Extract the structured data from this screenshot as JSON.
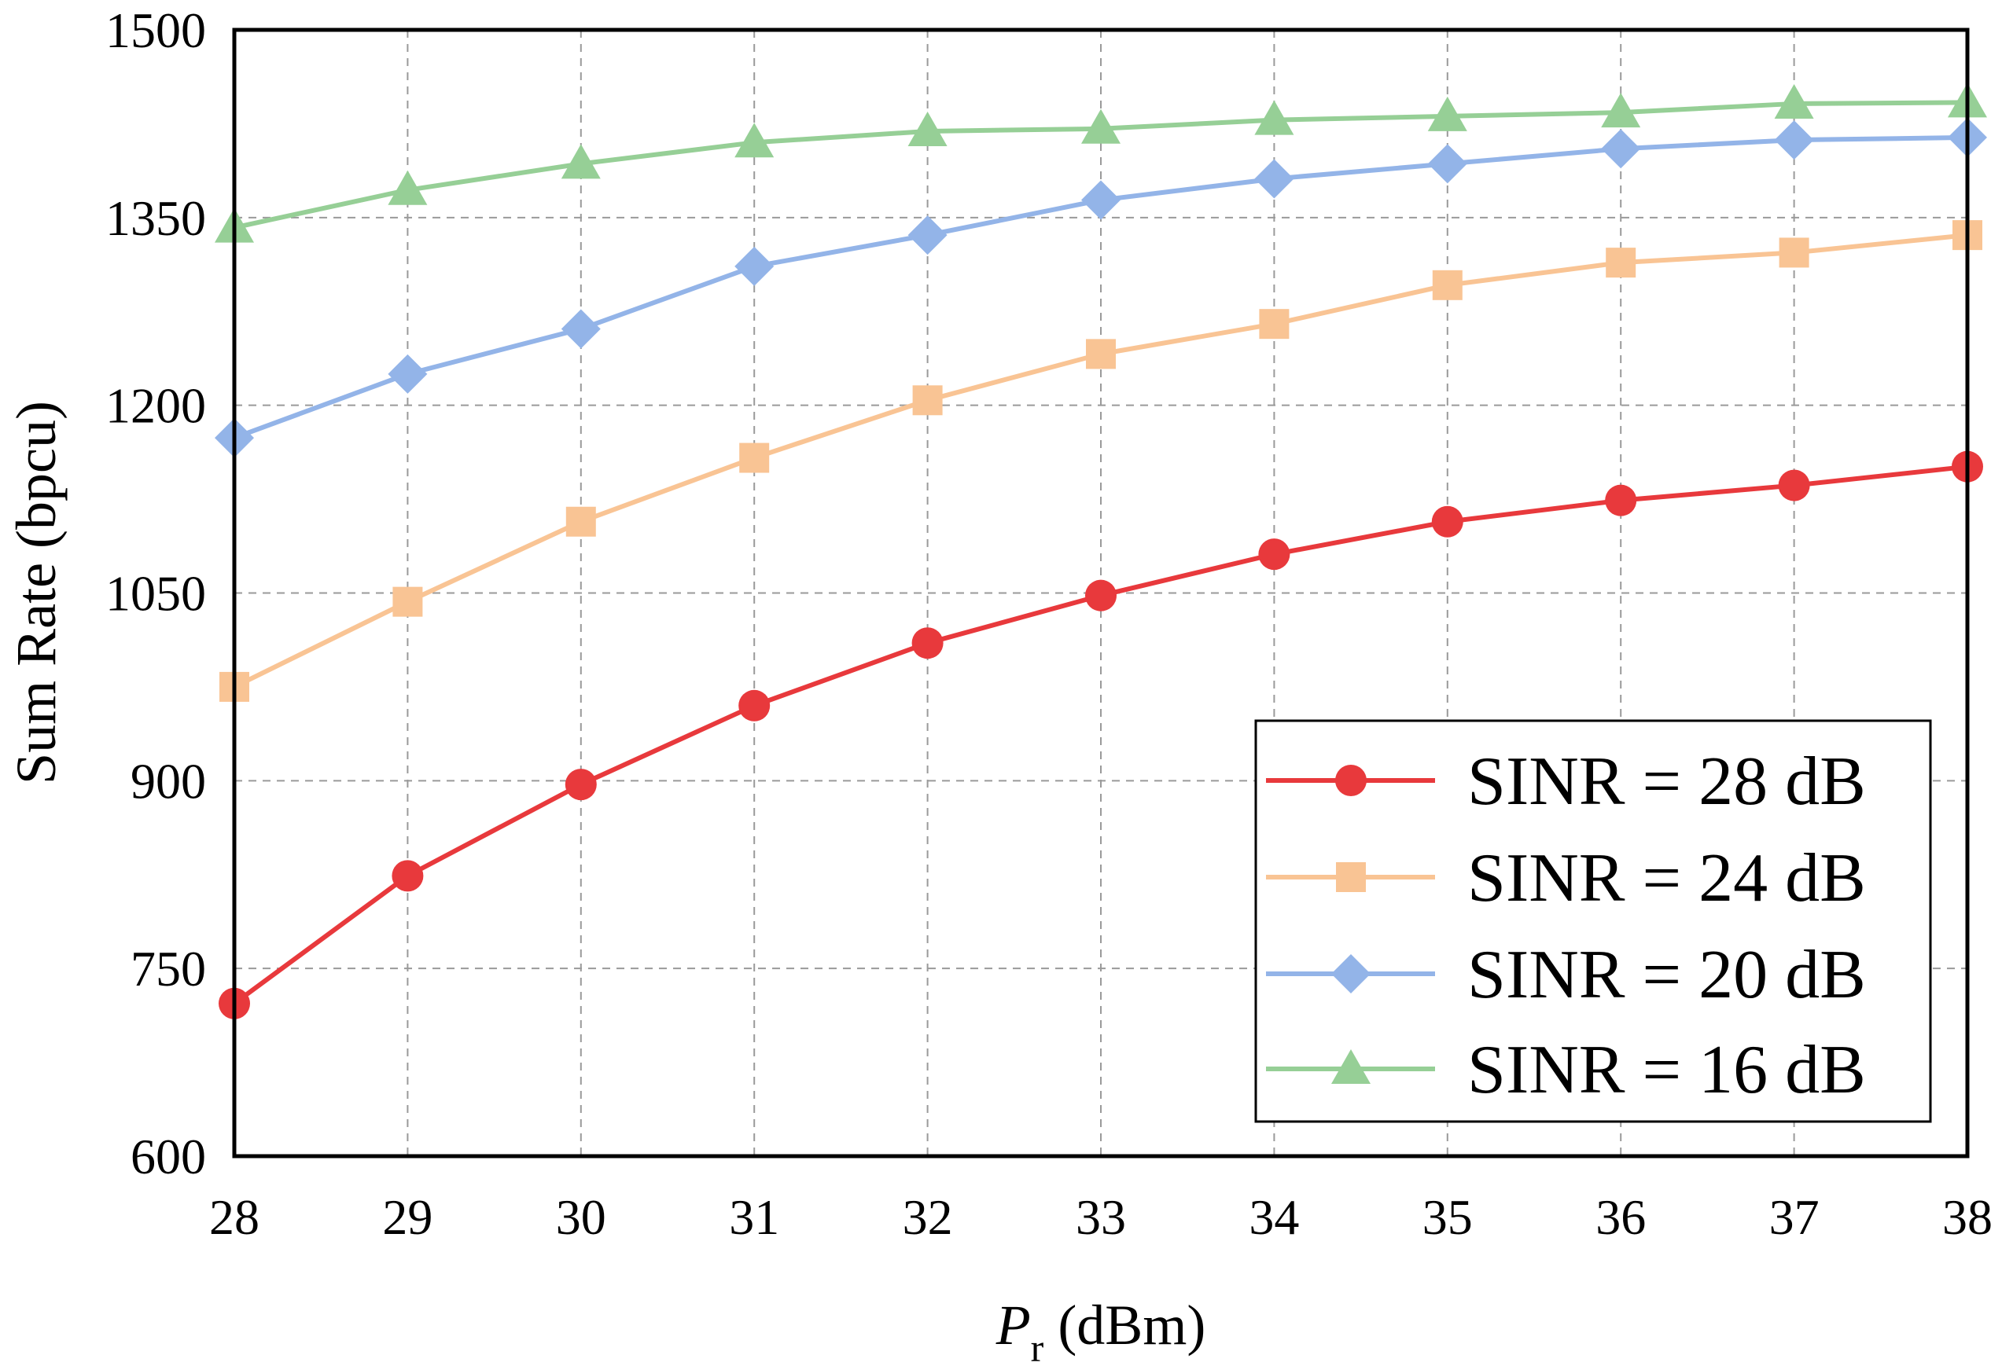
{
  "chart_data": {
    "type": "line",
    "title": "",
    "xlabel": {
      "symbol": "P",
      "subscript": "r",
      "unit": " (dBm)"
    },
    "ylabel": "Sum Rate (bpcu)",
    "x": [
      28,
      29,
      30,
      31,
      32,
      33,
      34,
      35,
      36,
      37,
      38
    ],
    "xlim": [
      28,
      38
    ],
    "ylim": [
      600,
      1500
    ],
    "xticks": [
      "28",
      "29",
      "30",
      "31",
      "32",
      "33",
      "34",
      "35",
      "36",
      "37",
      "38"
    ],
    "yticks": [
      "600",
      "750",
      "900",
      "1050",
      "1200",
      "1350",
      "1500"
    ],
    "grid": true,
    "legend_position": "lower-right",
    "series": [
      {
        "name": "SINR = 28 dB",
        "color": "#e8393c",
        "marker": "circle",
        "values": [
          722,
          824,
          897,
          960,
          1010,
          1048,
          1081,
          1107,
          1124,
          1136,
          1151
        ]
      },
      {
        "name": "SINR = 24 dB",
        "color": "#f9c494",
        "marker": "square",
        "values": [
          975,
          1043,
          1107,
          1158,
          1204,
          1241,
          1265,
          1296,
          1314,
          1322,
          1336
        ]
      },
      {
        "name": "SINR = 20 dB",
        "color": "#93b4e8",
        "marker": "diamond",
        "values": [
          1174,
          1225,
          1261,
          1311,
          1336,
          1364,
          1381,
          1393,
          1405,
          1412,
          1414
        ]
      },
      {
        "name": "SINR = 16 dB",
        "color": "#96cf96",
        "marker": "triangle",
        "values": [
          1342,
          1372,
          1393,
          1410,
          1419,
          1421,
          1428,
          1431,
          1434,
          1441,
          1442
        ]
      }
    ]
  }
}
